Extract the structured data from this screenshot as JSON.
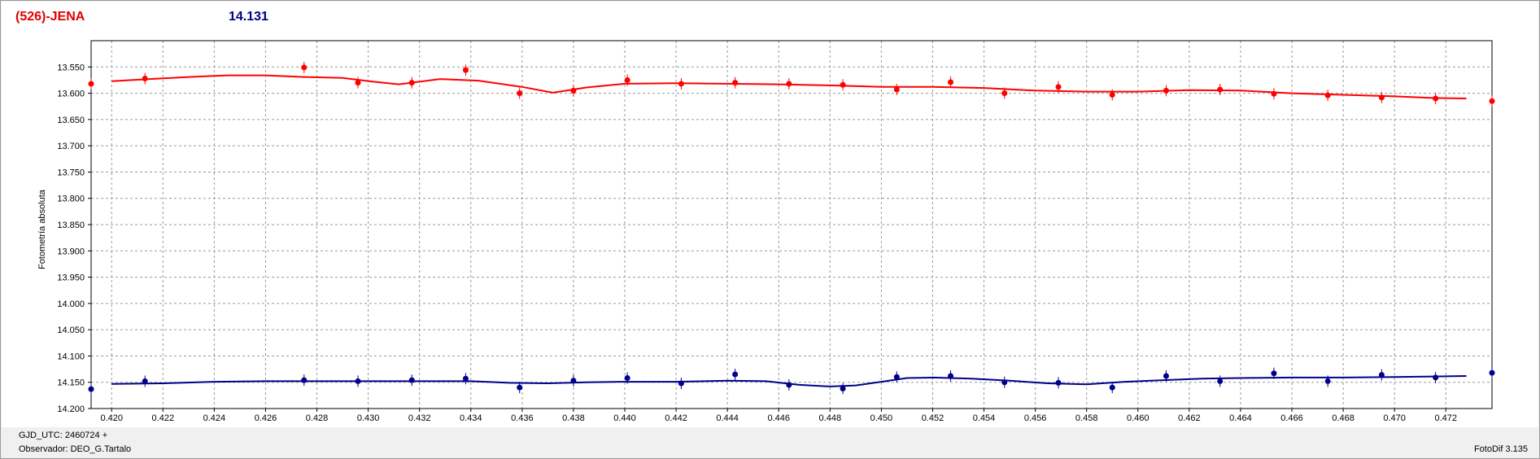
{
  "header": {
    "object_name": "(526)-JENA",
    "magnitude": "14.131"
  },
  "footer": {
    "gjd": "GJD_UTC: 2460724 +",
    "observer": "Observador: DEO_G.Tartalo",
    "version": "FotoDif 3.135"
  },
  "chart_data": {
    "type": "scatter",
    "title": "(526)-JENA",
    "ylabel": "Fotometría absoluta",
    "xlabel": "",
    "xlim": [
      0.4192,
      0.4738
    ],
    "ylim": [
      14.2,
      13.5
    ],
    "y_inverted": true,
    "grid": true,
    "x_ticks": [
      "0.420",
      "0.422",
      "0.424",
      "0.426",
      "0.428",
      "0.430",
      "0.432",
      "0.434",
      "0.436",
      "0.438",
      "0.440",
      "0.442",
      "0.444",
      "0.446",
      "0.448",
      "0.450",
      "0.452",
      "0.454",
      "0.456",
      "0.458",
      "0.460",
      "0.462",
      "0.464",
      "0.466",
      "0.468",
      "0.470",
      "0.472"
    ],
    "y_ticks": [
      "13.550",
      "13.600",
      "13.650",
      "13.700",
      "13.750",
      "13.800",
      "13.850",
      "13.900",
      "13.950",
      "14.000",
      "14.050",
      "14.100",
      "14.150",
      "14.200"
    ],
    "colors": {
      "series_red": "#ff0000",
      "series_blue": "#00008b"
    },
    "series": [
      {
        "color": "#ff0000",
        "points": [
          [
            0.4192,
            13.582
          ],
          [
            0.4213,
            13.572
          ],
          [
            0.4275,
            13.551
          ],
          [
            0.4296,
            13.58
          ],
          [
            0.4317,
            13.58
          ],
          [
            0.4338,
            13.556
          ],
          [
            0.4359,
            13.6
          ],
          [
            0.438,
            13.595
          ],
          [
            0.4401,
            13.575
          ],
          [
            0.4422,
            13.582
          ],
          [
            0.4443,
            13.58
          ],
          [
            0.4464,
            13.582
          ],
          [
            0.4485,
            13.584
          ],
          [
            0.4506,
            13.593
          ],
          [
            0.4527,
            13.579
          ],
          [
            0.4548,
            13.6
          ],
          [
            0.4569,
            13.588
          ],
          [
            0.459,
            13.603
          ],
          [
            0.4611,
            13.595
          ],
          [
            0.4632,
            13.593
          ],
          [
            0.4653,
            13.601
          ],
          [
            0.4674,
            13.604
          ],
          [
            0.4695,
            13.608
          ],
          [
            0.4716,
            13.61
          ],
          [
            0.4738,
            13.615
          ]
        ],
        "fit": [
          [
            0.42,
            13.577
          ],
          [
            0.4215,
            13.573
          ],
          [
            0.423,
            13.569
          ],
          [
            0.4245,
            13.566
          ],
          [
            0.426,
            13.566
          ],
          [
            0.4275,
            13.569
          ],
          [
            0.429,
            13.571
          ],
          [
            0.4302,
            13.578
          ],
          [
            0.4312,
            13.583
          ],
          [
            0.4328,
            13.573
          ],
          [
            0.4343,
            13.576
          ],
          [
            0.436,
            13.588
          ],
          [
            0.4372,
            13.599
          ],
          [
            0.4385,
            13.589
          ],
          [
            0.44,
            13.582
          ],
          [
            0.442,
            13.581
          ],
          [
            0.444,
            13.582
          ],
          [
            0.446,
            13.583
          ],
          [
            0.448,
            13.585
          ],
          [
            0.45,
            13.588
          ],
          [
            0.452,
            13.588
          ],
          [
            0.454,
            13.59
          ],
          [
            0.456,
            13.595
          ],
          [
            0.458,
            13.597
          ],
          [
            0.46,
            13.597
          ],
          [
            0.462,
            13.594
          ],
          [
            0.464,
            13.595
          ],
          [
            0.466,
            13.6
          ],
          [
            0.468,
            13.603
          ],
          [
            0.47,
            13.606
          ],
          [
            0.4715,
            13.609
          ],
          [
            0.4728,
            13.61
          ]
        ]
      },
      {
        "color": "#00008b",
        "points": [
          [
            0.4192,
            14.163
          ],
          [
            0.4213,
            14.148
          ],
          [
            0.4275,
            14.146
          ],
          [
            0.4296,
            14.148
          ],
          [
            0.4317,
            14.146
          ],
          [
            0.4338,
            14.143
          ],
          [
            0.4359,
            14.16
          ],
          [
            0.438,
            14.147
          ],
          [
            0.4401,
            14.142
          ],
          [
            0.4422,
            14.152
          ],
          [
            0.4443,
            14.135
          ],
          [
            0.4464,
            14.155
          ],
          [
            0.4485,
            14.162
          ],
          [
            0.4506,
            14.14
          ],
          [
            0.4527,
            14.138
          ],
          [
            0.4548,
            14.15
          ],
          [
            0.4569,
            14.151
          ],
          [
            0.459,
            14.16
          ],
          [
            0.4611,
            14.138
          ],
          [
            0.4632,
            14.148
          ],
          [
            0.4653,
            14.133
          ],
          [
            0.4674,
            14.148
          ],
          [
            0.4695,
            14.136
          ],
          [
            0.4716,
            14.141
          ],
          [
            0.4738,
            14.132
          ]
        ],
        "fit": [
          [
            0.42,
            14.153
          ],
          [
            0.422,
            14.152
          ],
          [
            0.424,
            14.149
          ],
          [
            0.426,
            14.148
          ],
          [
            0.428,
            14.148
          ],
          [
            0.43,
            14.148
          ],
          [
            0.432,
            14.148
          ],
          [
            0.434,
            14.148
          ],
          [
            0.4355,
            14.151
          ],
          [
            0.437,
            14.152
          ],
          [
            0.4385,
            14.15
          ],
          [
            0.44,
            14.149
          ],
          [
            0.442,
            14.149
          ],
          [
            0.444,
            14.147
          ],
          [
            0.4455,
            14.148
          ],
          [
            0.4468,
            14.155
          ],
          [
            0.448,
            14.158
          ],
          [
            0.449,
            14.156
          ],
          [
            0.45,
            14.149
          ],
          [
            0.451,
            14.142
          ],
          [
            0.452,
            14.141
          ],
          [
            0.4535,
            14.143
          ],
          [
            0.455,
            14.147
          ],
          [
            0.4565,
            14.152
          ],
          [
            0.458,
            14.154
          ],
          [
            0.4595,
            14.149
          ],
          [
            0.461,
            14.146
          ],
          [
            0.4625,
            14.143
          ],
          [
            0.464,
            14.142
          ],
          [
            0.466,
            14.141
          ],
          [
            0.468,
            14.141
          ],
          [
            0.47,
            14.14
          ],
          [
            0.4715,
            14.139
          ],
          [
            0.4728,
            14.138
          ]
        ]
      }
    ]
  }
}
